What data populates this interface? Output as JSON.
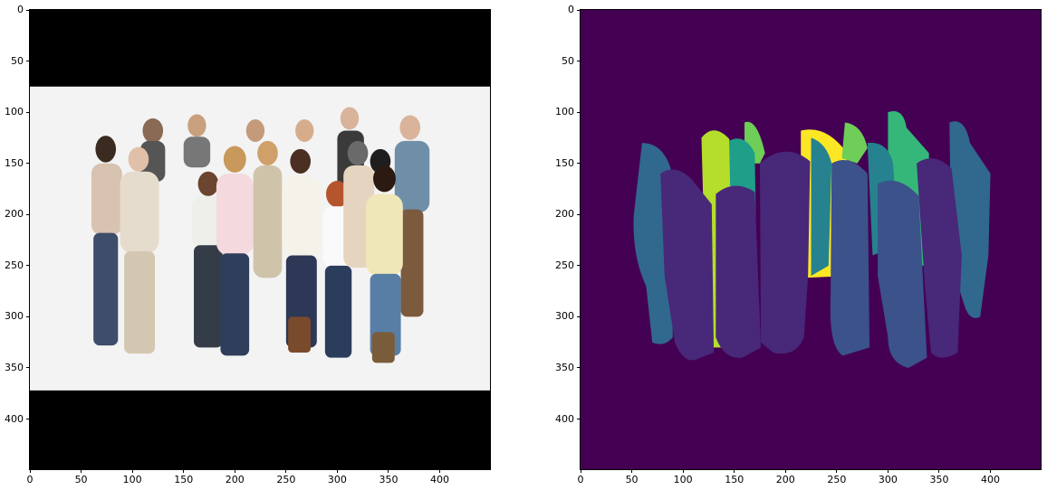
{
  "axes": {
    "tick_values": [
      0,
      50,
      100,
      150,
      200,
      250,
      300,
      350,
      400
    ],
    "xlim": [
      0,
      449
    ],
    "ylim": [
      449,
      0
    ]
  },
  "left_panel": {
    "content": "photo-of-group",
    "letterbox_rows": [
      [
        0,
        75
      ],
      [
        372,
        449
      ]
    ],
    "image_rows": [
      75,
      372
    ],
    "background_color": "#f3f3f3",
    "bar_color": "#000000"
  },
  "right_panel": {
    "content": "segmentation-mask",
    "background_color": "#440154",
    "segment_colors": [
      "#3b528b",
      "#31688e",
      "#26828e",
      "#1f9e89",
      "#35b779",
      "#6ece58",
      "#b5de2b",
      "#fde725",
      "#482878"
    ]
  }
}
